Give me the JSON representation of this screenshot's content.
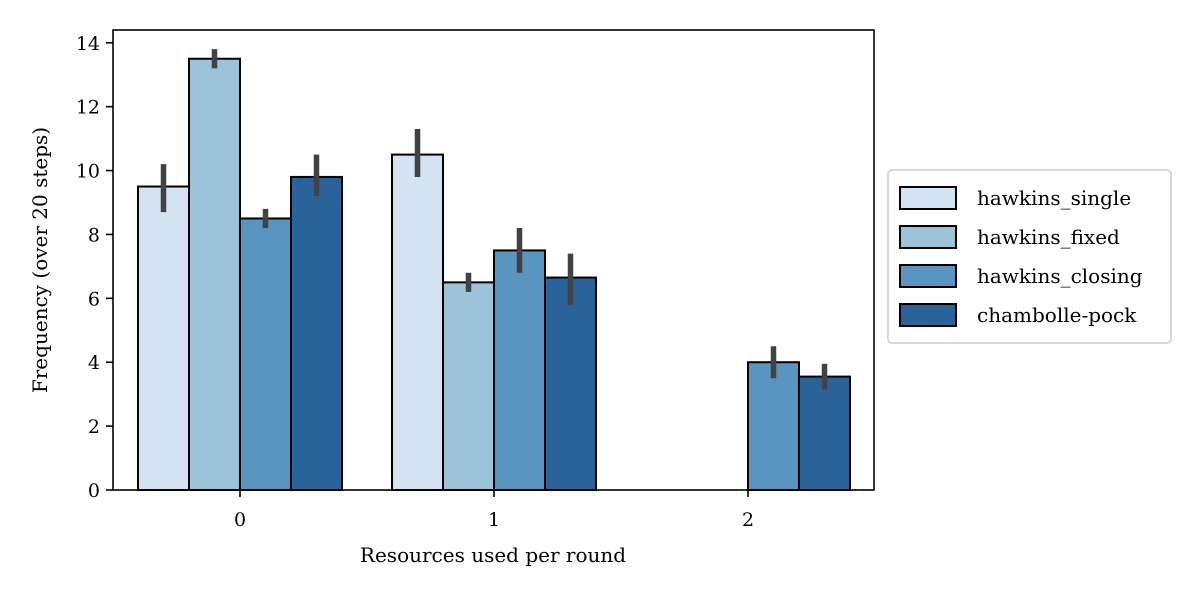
{
  "chart_data": {
    "type": "bar",
    "xlabel": "Resources used per round",
    "ylabel": "Frequency (over 20 steps)",
    "categories": [
      "0",
      "1",
      "2"
    ],
    "ylim": [
      0,
      14.4
    ],
    "yticks": [
      0,
      2,
      4,
      6,
      8,
      10,
      12,
      14
    ],
    "grid": false,
    "legend_position": "right",
    "series": [
      {
        "name": "hawkins_single",
        "color": "#d4e3f1",
        "values": [
          9.5,
          10.5,
          null
        ],
        "error": [
          [
            8.7,
            10.2
          ],
          [
            9.8,
            11.3
          ],
          null
        ]
      },
      {
        "name": "hawkins_fixed",
        "color": "#9dc3d9",
        "values": [
          13.5,
          6.5,
          null
        ],
        "error": [
          [
            13.2,
            13.8
          ],
          [
            6.2,
            6.8
          ],
          null
        ]
      },
      {
        "name": "hawkins_closing",
        "color": "#5a95bf",
        "values": [
          8.5,
          7.5,
          4.0
        ],
        "error": [
          [
            8.2,
            8.8
          ],
          [
            6.8,
            8.2
          ],
          [
            3.5,
            4.5
          ]
        ]
      },
      {
        "name": "chambolle-pock",
        "color": "#2a639a",
        "values": [
          9.8,
          6.65,
          3.55
        ],
        "error": [
          [
            9.2,
            10.5
          ],
          [
            5.8,
            7.4
          ],
          [
            3.15,
            3.95
          ]
        ]
      }
    ]
  }
}
